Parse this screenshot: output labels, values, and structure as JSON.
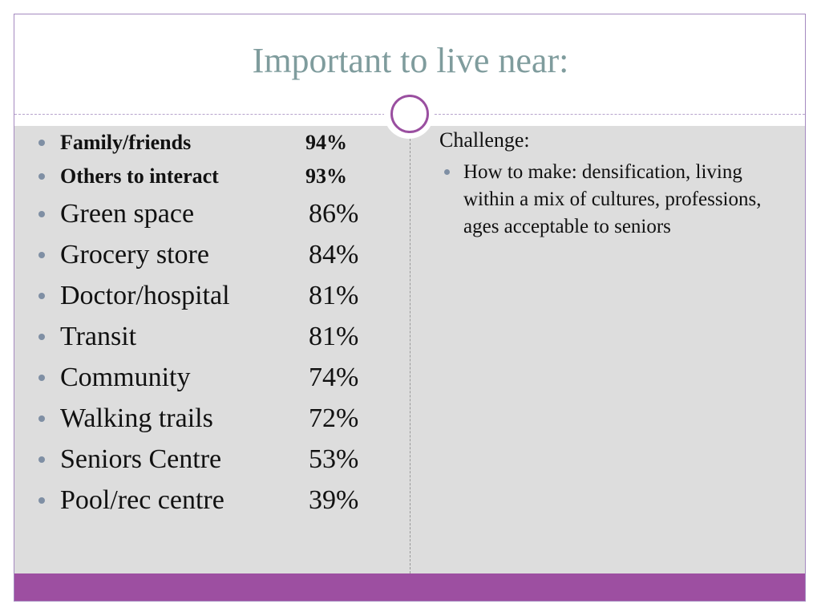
{
  "slide": {
    "title": "Important to live near:",
    "left_items_small": [
      {
        "label": "Family/friends",
        "value": "94%"
      },
      {
        "label": "Others to interact",
        "value": "93%"
      }
    ],
    "left_items_big": [
      {
        "label": "Green space",
        "value": "86%"
      },
      {
        "label": "Grocery store",
        "value": "84%"
      },
      {
        "label": "Doctor/hospital",
        "value": "81%"
      },
      {
        "label": "Transit",
        "value": "81%"
      },
      {
        "label": "Community",
        "value": "74%"
      },
      {
        "label": "Walking trails",
        "value": "72%"
      },
      {
        "label": "Seniors Centre",
        "value": "53%"
      },
      {
        "label": "Pool/rec centre",
        "value": "39%"
      }
    ],
    "right_heading": "Challenge:",
    "right_bullets": [
      "How to make: densification, living within a mix of cultures, professions, ages acceptable to seniors"
    ]
  },
  "colors": {
    "title": "#7f9c9d",
    "accent_purple": "#9d4fa1",
    "content_bg": "#dddddd",
    "bullet": "#7f8fa4"
  }
}
